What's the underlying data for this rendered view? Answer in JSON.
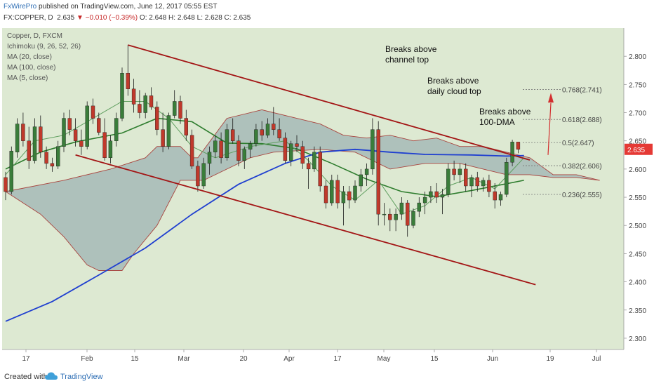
{
  "header": {
    "brand": "FxWirePro",
    "published_text": " published on TradingView.com, June 12, 2017 05:55 EST",
    "symbol": "FX:COPPER, D",
    "last": "2.635",
    "change": "▼ −0.010 (−0.39%)",
    "ohlc": "O: 2.648 H: 2.648 L: 2.628 C: 2.635"
  },
  "legend": [
    "Copper, D, FXCM",
    "Ichimoku (9, 26, 52, 26)",
    "MA (20, close)",
    "MA (100, close)",
    "MA (5, close)"
  ],
  "annotations": [
    "Breaks above\nchannel top",
    "Breaks above\ndaily cloud top",
    "Breaks above\n100-DMA"
  ],
  "fib_labels": [
    "0.768(2.741)",
    "0.618(2.688)",
    "0.5(2.647)",
    "0.382(2.606)",
    "0.236(2.555)"
  ],
  "price_tag": "2.635",
  "footer": {
    "created": "Created with",
    "brand": "TradingView"
  },
  "colors": {
    "background": "#dde9d2",
    "bull": "#3a7d3a",
    "bear": "#c0392b",
    "cloud": "#9eb3b3",
    "cloud_line": "#a9443f",
    "ma20": "#2e7d2e",
    "ma100": "#1f3fd0",
    "ma5": "#5e9e5e",
    "channel": "#a31515",
    "arrow": "#d32f2f",
    "price_tag": "#e53935"
  },
  "chart_data": {
    "type": "candlestick",
    "title": "Copper, D, FXCM",
    "ylim": [
      2.28,
      2.85
    ],
    "y_ticks": [
      2.3,
      2.35,
      2.4,
      2.45,
      2.5,
      2.55,
      2.6,
      2.65,
      2.7,
      2.75,
      2.8
    ],
    "y_tick_labels": [
      "2.300",
      "2.350",
      "2.400",
      "2.450",
      "2.500",
      "2.550",
      "2.600",
      "2.650",
      "2.700",
      "2.750",
      "2.800"
    ],
    "x_tick_labels": [
      "17",
      "Feb",
      "15",
      "Mar",
      "20",
      "Apr",
      "17",
      "May",
      "15",
      "Jun",
      "19",
      "Jul"
    ],
    "candles": [
      [
        2.585,
        2.595,
        2.545,
        2.56
      ],
      [
        2.56,
        2.64,
        2.555,
        2.632
      ],
      [
        2.63,
        2.69,
        2.62,
        2.68
      ],
      [
        2.68,
        2.7,
        2.64,
        2.65
      ],
      [
        2.65,
        2.675,
        2.6,
        2.615
      ],
      [
        2.615,
        2.69,
        2.61,
        2.675
      ],
      [
        2.675,
        2.695,
        2.62,
        2.63
      ],
      [
        2.63,
        2.64,
        2.6,
        2.61
      ],
      [
        2.61,
        2.62,
        2.595,
        2.605
      ],
      [
        2.605,
        2.65,
        2.6,
        2.64
      ],
      [
        2.64,
        2.7,
        2.63,
        2.69
      ],
      [
        2.69,
        2.705,
        2.66,
        2.67
      ],
      [
        2.67,
        2.69,
        2.64,
        2.65
      ],
      [
        2.65,
        2.67,
        2.625,
        2.64
      ],
      [
        2.64,
        2.72,
        2.635,
        2.712
      ],
      [
        2.712,
        2.725,
        2.68,
        2.69
      ],
      [
        2.69,
        2.7,
        2.66,
        2.665
      ],
      [
        2.665,
        2.69,
        2.615,
        2.62
      ],
      [
        2.62,
        2.66,
        2.61,
        2.65
      ],
      [
        2.65,
        2.7,
        2.64,
        2.69
      ],
      [
        2.69,
        2.78,
        2.685,
        2.77
      ],
      [
        2.77,
        2.82,
        2.73,
        2.742
      ],
      [
        2.742,
        2.76,
        2.7,
        2.715
      ],
      [
        2.715,
        2.74,
        2.69,
        2.7
      ],
      [
        2.7,
        2.735,
        2.69,
        2.73
      ],
      [
        2.73,
        2.745,
        2.705,
        2.71
      ],
      [
        2.71,
        2.72,
        2.66,
        2.67
      ],
      [
        2.67,
        2.7,
        2.63,
        2.64
      ],
      [
        2.64,
        2.7,
        2.635,
        2.695
      ],
      [
        2.695,
        2.74,
        2.69,
        2.72
      ],
      [
        2.72,
        2.73,
        2.68,
        2.69
      ],
      [
        2.69,
        2.705,
        2.65,
        2.66
      ],
      [
        2.66,
        2.67,
        2.6,
        2.605
      ],
      [
        2.605,
        2.615,
        2.56,
        2.57
      ],
      [
        2.57,
        2.62,
        2.565,
        2.61
      ],
      [
        2.61,
        2.64,
        2.59,
        2.63
      ],
      [
        2.63,
        2.66,
        2.62,
        2.65
      ],
      [
        2.65,
        2.665,
        2.61,
        2.62
      ],
      [
        2.62,
        2.68,
        2.615,
        2.67
      ],
      [
        2.67,
        2.69,
        2.645,
        2.65
      ],
      [
        2.65,
        2.66,
        2.605,
        2.615
      ],
      [
        2.615,
        2.64,
        2.6,
        2.635
      ],
      [
        2.635,
        2.65,
        2.62,
        2.645
      ],
      [
        2.645,
        2.68,
        2.64,
        2.67
      ],
      [
        2.67,
        2.685,
        2.65,
        2.66
      ],
      [
        2.66,
        2.69,
        2.655,
        2.68
      ],
      [
        2.68,
        2.71,
        2.66,
        2.67
      ],
      [
        2.67,
        2.69,
        2.65,
        2.655
      ],
      [
        2.655,
        2.665,
        2.61,
        2.615
      ],
      [
        2.615,
        2.65,
        2.605,
        2.645
      ],
      [
        2.645,
        2.66,
        2.63,
        2.64
      ],
      [
        2.64,
        2.65,
        2.6,
        2.61
      ],
      [
        2.61,
        2.62,
        2.565,
        2.6
      ],
      [
        2.6,
        2.64,
        2.595,
        2.63
      ],
      [
        2.63,
        2.64,
        2.56,
        2.57
      ],
      [
        2.57,
        2.58,
        2.53,
        2.54
      ],
      [
        2.54,
        2.59,
        2.535,
        2.58
      ],
      [
        2.58,
        2.59,
        2.53,
        2.54
      ],
      [
        2.54,
        2.57,
        2.5,
        2.56
      ],
      [
        2.56,
        2.57,
        2.53,
        2.545
      ],
      [
        2.545,
        2.58,
        2.54,
        2.57
      ],
      [
        2.57,
        2.6,
        2.56,
        2.59
      ],
      [
        2.59,
        2.61,
        2.57,
        2.6
      ],
      [
        2.6,
        2.69,
        2.59,
        2.67
      ],
      [
        2.67,
        2.685,
        2.5,
        2.52
      ],
      [
        2.52,
        2.54,
        2.5,
        2.52
      ],
      [
        2.52,
        2.53,
        2.49,
        2.51
      ],
      [
        2.51,
        2.53,
        2.49,
        2.52
      ],
      [
        2.52,
        2.55,
        2.51,
        2.54
      ],
      [
        2.54,
        2.545,
        2.48,
        2.5
      ],
      [
        2.5,
        2.53,
        2.495,
        2.525
      ],
      [
        2.525,
        2.55,
        2.515,
        2.54
      ],
      [
        2.54,
        2.56,
        2.52,
        2.55
      ],
      [
        2.55,
        2.57,
        2.54,
        2.56
      ],
      [
        2.56,
        2.575,
        2.54,
        2.55
      ],
      [
        2.55,
        2.565,
        2.52,
        2.555
      ],
      [
        2.555,
        2.61,
        2.55,
        2.6
      ],
      [
        2.6,
        2.615,
        2.58,
        2.59
      ],
      [
        2.59,
        2.61,
        2.575,
        2.6
      ],
      [
        2.6,
        2.61,
        2.56,
        2.57
      ],
      [
        2.57,
        2.59,
        2.55,
        2.585
      ],
      [
        2.585,
        2.595,
        2.56,
        2.57
      ],
      [
        2.57,
        2.585,
        2.56,
        2.58
      ],
      [
        2.58,
        2.59,
        2.55,
        2.56
      ],
      [
        2.56,
        2.575,
        2.53,
        2.545
      ],
      [
        2.545,
        2.56,
        2.535,
        2.555
      ],
      [
        2.555,
        2.62,
        2.55,
        2.612
      ],
      [
        2.612,
        2.652,
        2.605,
        2.648
      ],
      [
        2.648,
        2.648,
        2.628,
        2.635
      ]
    ],
    "series": [
      {
        "name": "MA (20, close)",
        "values": [
          [
            0,
            2.6
          ],
          [
            6,
            2.63
          ],
          [
            12,
            2.648
          ],
          [
            20,
            2.664
          ],
          [
            26,
            2.69
          ],
          [
            32,
            2.684
          ],
          [
            38,
            2.646
          ],
          [
            44,
            2.645
          ],
          [
            50,
            2.636
          ],
          [
            56,
            2.61
          ],
          [
            62,
            2.582
          ],
          [
            68,
            2.56
          ],
          [
            74,
            2.551
          ],
          [
            80,
            2.562
          ],
          [
            86,
            2.574
          ],
          [
            89,
            2.58
          ]
        ]
      },
      {
        "name": "MA (100, close)",
        "values": [
          [
            0,
            2.33
          ],
          [
            8,
            2.365
          ],
          [
            16,
            2.412
          ],
          [
            24,
            2.46
          ],
          [
            32,
            2.52
          ],
          [
            40,
            2.573
          ],
          [
            48,
            2.61
          ],
          [
            54,
            2.63
          ],
          [
            60,
            2.635
          ],
          [
            66,
            2.63
          ],
          [
            72,
            2.626
          ],
          [
            80,
            2.625
          ],
          [
            86,
            2.623
          ],
          [
            89,
            2.624
          ]
        ]
      },
      {
        "name": "MA (5, close)",
        "values": [
          [
            0,
            2.59
          ],
          [
            5,
            2.65
          ],
          [
            10,
            2.66
          ],
          [
            15,
            2.69
          ],
          [
            20,
            2.72
          ],
          [
            24,
            2.72
          ],
          [
            28,
            2.69
          ],
          [
            32,
            2.64
          ],
          [
            36,
            2.62
          ],
          [
            42,
            2.64
          ],
          [
            48,
            2.65
          ],
          [
            52,
            2.615
          ],
          [
            56,
            2.57
          ],
          [
            60,
            2.545
          ],
          [
            64,
            2.58
          ],
          [
            68,
            2.52
          ],
          [
            72,
            2.535
          ],
          [
            76,
            2.57
          ],
          [
            80,
            2.585
          ],
          [
            84,
            2.565
          ],
          [
            89,
            2.62
          ]
        ]
      }
    ],
    "cloud": {
      "upper": [
        [
          0,
          2.56
        ],
        [
          10,
          2.58
        ],
        [
          18,
          2.6
        ],
        [
          24,
          2.62
        ],
        [
          26,
          2.64
        ],
        [
          30,
          2.64
        ],
        [
          32,
          2.62
        ],
        [
          33,
          2.62
        ],
        [
          38,
          2.69
        ],
        [
          44,
          2.705
        ],
        [
          50,
          2.69
        ],
        [
          54,
          2.68
        ],
        [
          58,
          2.66
        ],
        [
          62,
          2.655
        ],
        [
          66,
          2.66
        ],
        [
          70,
          2.65
        ],
        [
          74,
          2.655
        ],
        [
          78,
          2.64
        ],
        [
          82,
          2.64
        ],
        [
          86,
          2.63
        ],
        [
          90,
          2.62
        ],
        [
          94,
          2.59
        ],
        [
          98,
          2.59
        ],
        [
          102,
          2.58
        ]
      ],
      "lower": [
        [
          0,
          2.56
        ],
        [
          6,
          2.52
        ],
        [
          10,
          2.48
        ],
        [
          14,
          2.43
        ],
        [
          16,
          2.42
        ],
        [
          20,
          2.42
        ],
        [
          22,
          2.45
        ],
        [
          26,
          2.5
        ],
        [
          30,
          2.58
        ],
        [
          34,
          2.58
        ],
        [
          38,
          2.6
        ],
        [
          42,
          2.62
        ],
        [
          46,
          2.63
        ],
        [
          54,
          2.635
        ],
        [
          60,
          2.63
        ],
        [
          66,
          2.6
        ],
        [
          72,
          2.61
        ],
        [
          78,
          2.61
        ],
        [
          82,
          2.6
        ],
        [
          86,
          2.59
        ],
        [
          90,
          2.59
        ],
        [
          94,
          2.585
        ],
        [
          98,
          2.585
        ],
        [
          102,
          2.58
        ]
      ]
    },
    "channel_lines": [
      [
        [
          21,
          2.82
        ],
        [
          90,
          2.616
        ]
      ],
      [
        [
          12,
          2.625
        ],
        [
          91,
          2.395
        ]
      ]
    ],
    "fibonacci": [
      {
        "label": "0.768(2.741)",
        "value": 2.741
      },
      {
        "label": "0.618(2.688)",
        "value": 2.688
      },
      {
        "label": "0.5(2.647)",
        "value": 2.647
      },
      {
        "label": "0.382(2.606)",
        "value": 2.606
      },
      {
        "label": "0.236(2.555)",
        "value": 2.555
      }
    ],
    "last_price": 2.635
  }
}
